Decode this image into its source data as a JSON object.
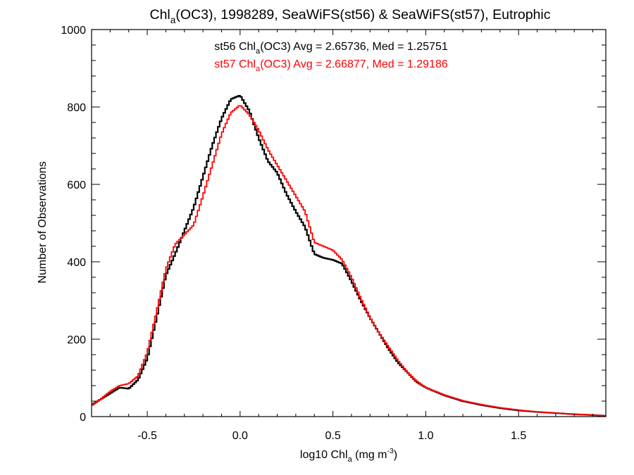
{
  "chart_data": {
    "type": "histogram",
    "title": {
      "prefix": "Chl",
      "sub": "a",
      "suffix": "(OC3), 1998289, SeaWiFS(st56) & SeaWiFS(st57), Eutrophic"
    },
    "xlabel": {
      "prefix": "log10 Chl",
      "sub": "a",
      "mid": " (mg m",
      "sup": "-3",
      "suffix": ")"
    },
    "ylabel": "Number of Observations",
    "xlim": [
      -0.8,
      1.97
    ],
    "ylim": [
      0,
      1000
    ],
    "x_ticks": [
      -0.5,
      0.0,
      0.5,
      1.0,
      1.5
    ],
    "x_tick_labels": [
      "-0.5",
      "0.0",
      "0.5",
      "1.0",
      "1.5"
    ],
    "y_ticks": [
      0,
      200,
      400,
      600,
      800,
      1000
    ],
    "y_tick_labels": [
      "0",
      "200",
      "400",
      "600",
      "800",
      "1000"
    ],
    "bin_width": 0.01,
    "grid": false,
    "legend": [
      {
        "prefix": "st56 Chl",
        "sub": "a",
        "suffix": "(OC3) Avg = 2.65736, Med = 1.25751",
        "color": "#000000"
      },
      {
        "prefix": "st57 Chl",
        "sub": "a",
        "suffix": "(OC3) Avg = 2.66877, Med = 1.29186",
        "color": "#ff0000"
      }
    ],
    "series": [
      {
        "name": "st56",
        "color": "#000000",
        "x": [
          -0.8,
          -0.75,
          -0.7,
          -0.65,
          -0.6,
          -0.55,
          -0.5,
          -0.45,
          -0.4,
          -0.35,
          -0.3,
          -0.25,
          -0.2,
          -0.15,
          -0.1,
          -0.05,
          0.0,
          0.05,
          0.1,
          0.15,
          0.2,
          0.25,
          0.3,
          0.35,
          0.4,
          0.45,
          0.5,
          0.55,
          0.6,
          0.65,
          0.7,
          0.75,
          0.8,
          0.85,
          0.9,
          0.95,
          1.0,
          1.1,
          1.2,
          1.3,
          1.4,
          1.5,
          1.6,
          1.7,
          1.8,
          1.9,
          1.97
        ],
        "y": [
          30,
          45,
          60,
          75,
          72,
          95,
          150,
          255,
          365,
          420,
          480,
          540,
          620,
          700,
          770,
          820,
          830,
          790,
          720,
          660,
          630,
          575,
          530,
          490,
          420,
          410,
          405,
          395,
          350,
          300,
          255,
          215,
          175,
          140,
          115,
          90,
          75,
          55,
          40,
          30,
          22,
          16,
          12,
          9,
          6,
          4,
          2
        ]
      },
      {
        "name": "st57",
        "color": "#ff0000",
        "x": [
          -0.8,
          -0.75,
          -0.7,
          -0.65,
          -0.6,
          -0.55,
          -0.5,
          -0.45,
          -0.4,
          -0.35,
          -0.3,
          -0.25,
          -0.2,
          -0.15,
          -0.1,
          -0.05,
          0.0,
          0.05,
          0.1,
          0.15,
          0.2,
          0.25,
          0.3,
          0.35,
          0.4,
          0.45,
          0.5,
          0.55,
          0.6,
          0.65,
          0.7,
          0.75,
          0.8,
          0.85,
          0.9,
          0.95,
          1.0,
          1.1,
          1.2,
          1.3,
          1.4,
          1.5,
          1.6,
          1.7,
          1.8,
          1.9,
          1.97
        ],
        "y": [
          28,
          45,
          65,
          80,
          85,
          105,
          165,
          270,
          380,
          445,
          470,
          495,
          570,
          650,
          730,
          785,
          805,
          780,
          740,
          690,
          650,
          610,
          570,
          530,
          450,
          440,
          430,
          405,
          360,
          305,
          255,
          215,
          180,
          145,
          115,
          92,
          75,
          56,
          41,
          31,
          23,
          17,
          12,
          9,
          6,
          4,
          2
        ]
      }
    ]
  }
}
